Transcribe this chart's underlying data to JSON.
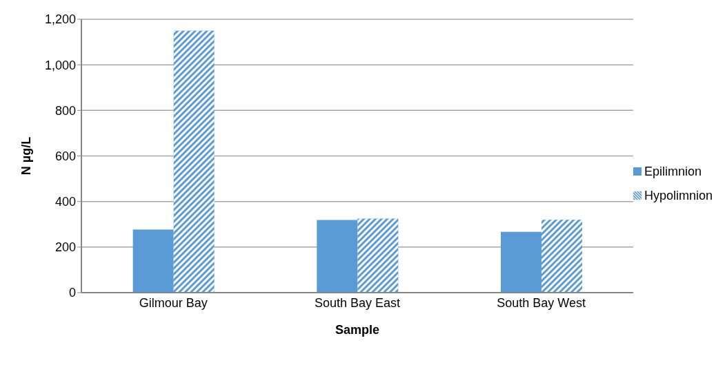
{
  "chart_data": {
    "type": "bar",
    "xlabel": "Sample",
    "ylabel": "N µg/L",
    "categories": [
      "Gilmour Bay",
      "South Bay East",
      "South Bay West"
    ],
    "series": [
      {
        "name": "Epilimnion",
        "color": "#5b9bd5",
        "values": [
          277,
          319,
          267
        ]
      },
      {
        "name": "Hypolimnion",
        "color": "#5b9bd5",
        "values": [
          1150,
          325,
          320
        ]
      }
    ],
    "ylim": [
      0,
      1200
    ],
    "yticks": [
      0,
      200,
      400,
      600,
      800,
      {
        "value": 1000,
        "label": "1,000"
      },
      {
        "value": 1200,
        "label": "1,200"
      }
    ],
    "grid": "y",
    "legend": "right"
  }
}
